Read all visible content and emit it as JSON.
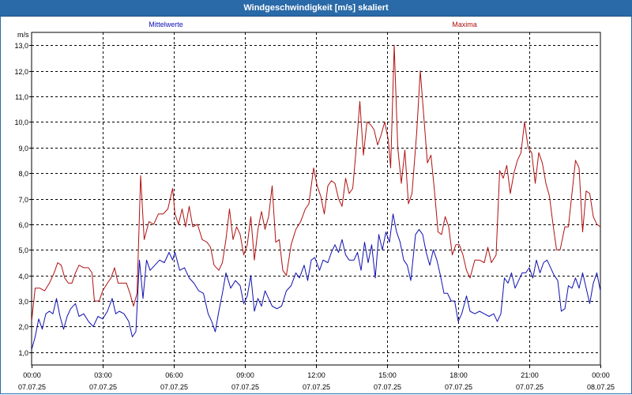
{
  "window": {
    "title": "Windgeschwindigkeit [m/s] skaliert"
  },
  "chart_data": {
    "type": "line",
    "title": "Windgeschwindigkeit [m/s] skaliert",
    "ylabel": "m/s",
    "xlabel": "",
    "ylim": [
      0.5,
      13.5
    ],
    "yticks": [
      1.0,
      2.0,
      3.0,
      4.0,
      5.0,
      6.0,
      7.0,
      8.0,
      9.0,
      10.0,
      11.0,
      12.0,
      13.0
    ],
    "ytick_labels": [
      "1,0",
      "2,0",
      "3,0",
      "4,0",
      "5,0",
      "6,0",
      "7,0",
      "8,0",
      "9,0",
      "10,0",
      "11,0",
      "12,0",
      "13,0"
    ],
    "xlim_hours": [
      0,
      24
    ],
    "xticks": [
      {
        "h": 0,
        "time": "00:00",
        "date": "07.07.25"
      },
      {
        "h": 3,
        "time": "03:00",
        "date": "07.07.25"
      },
      {
        "h": 6,
        "time": "06:00",
        "date": "07.07.25"
      },
      {
        "h": 9,
        "time": "09:00",
        "date": "07.07.25"
      },
      {
        "h": 12,
        "time": "12:00",
        "date": "07.07.25"
      },
      {
        "h": 15,
        "time": "15:00",
        "date": "07.07.25"
      },
      {
        "h": 18,
        "time": "18:00",
        "date": "07.07.25"
      },
      {
        "h": 21,
        "time": "21:00",
        "date": "07.07.25"
      },
      {
        "h": 24,
        "time": "00:00",
        "date": "08.07.25"
      }
    ],
    "grid": true,
    "legend": "top",
    "series": [
      {
        "name": "Mittelwerte",
        "color": "#1010b0",
        "points": [
          [
            0,
            1.1
          ],
          [
            0.15,
            1.6
          ],
          [
            0.3,
            2.3
          ],
          [
            0.45,
            1.9
          ],
          [
            0.6,
            2.5
          ],
          [
            0.75,
            2.6
          ],
          [
            0.9,
            2.5
          ],
          [
            1.05,
            3.1
          ],
          [
            1.2,
            2.4
          ],
          [
            1.35,
            1.9
          ],
          [
            1.5,
            2.4
          ],
          [
            1.65,
            2.7
          ],
          [
            1.85,
            2.9
          ],
          [
            2.0,
            2.4
          ],
          [
            2.2,
            2.5
          ],
          [
            2.4,
            2.2
          ],
          [
            2.6,
            2.0
          ],
          [
            2.8,
            2.4
          ],
          [
            3.0,
            2.3
          ],
          [
            3.2,
            2.6
          ],
          [
            3.4,
            3.1
          ],
          [
            3.55,
            2.5
          ],
          [
            3.7,
            2.6
          ],
          [
            3.9,
            2.5
          ],
          [
            4.1,
            2.2
          ],
          [
            4.25,
            1.6
          ],
          [
            4.4,
            1.8
          ],
          [
            4.55,
            4.6
          ],
          [
            4.7,
            3.1
          ],
          [
            4.85,
            4.6
          ],
          [
            5.0,
            4.2
          ],
          [
            5.2,
            4.4
          ],
          [
            5.4,
            4.6
          ],
          [
            5.6,
            4.5
          ],
          [
            5.8,
            4.9
          ],
          [
            5.95,
            4.6
          ],
          [
            6.05,
            4.9
          ],
          [
            6.25,
            4.2
          ],
          [
            6.45,
            4.3
          ],
          [
            6.65,
            3.9
          ],
          [
            6.85,
            3.7
          ],
          [
            7.05,
            3.4
          ],
          [
            7.25,
            3.3
          ],
          [
            7.45,
            2.5
          ],
          [
            7.6,
            2.2
          ],
          [
            7.75,
            1.8
          ],
          [
            7.9,
            2.6
          ],
          [
            8.05,
            3.3
          ],
          [
            8.2,
            4.1
          ],
          [
            8.4,
            3.5
          ],
          [
            8.6,
            3.8
          ],
          [
            8.8,
            3.6
          ],
          [
            8.95,
            2.9
          ],
          [
            9.1,
            3.2
          ],
          [
            9.25,
            4.0
          ],
          [
            9.4,
            2.6
          ],
          [
            9.55,
            3.1
          ],
          [
            9.7,
            2.8
          ],
          [
            9.85,
            3.4
          ],
          [
            10.0,
            3.1
          ],
          [
            10.15,
            2.8
          ],
          [
            10.35,
            2.7
          ],
          [
            10.55,
            2.8
          ],
          [
            10.75,
            3.4
          ],
          [
            10.95,
            3.6
          ],
          [
            11.15,
            4.1
          ],
          [
            11.3,
            3.9
          ],
          [
            11.5,
            4.4
          ],
          [
            11.65,
            3.8
          ],
          [
            11.8,
            4.6
          ],
          [
            11.95,
            4.7
          ],
          [
            12.15,
            4.2
          ],
          [
            12.3,
            4.6
          ],
          [
            12.5,
            4.5
          ],
          [
            12.65,
            4.9
          ],
          [
            12.8,
            5.2
          ],
          [
            12.95,
            4.9
          ],
          [
            13.1,
            5.4
          ],
          [
            13.25,
            4.8
          ],
          [
            13.4,
            4.6
          ],
          [
            13.6,
            4.6
          ],
          [
            13.75,
            4.9
          ],
          [
            13.9,
            4.2
          ],
          [
            14.05,
            5.3
          ],
          [
            14.2,
            4.5
          ],
          [
            14.35,
            5.2
          ],
          [
            14.5,
            3.9
          ],
          [
            14.65,
            5.6
          ],
          [
            14.8,
            5.0
          ],
          [
            14.95,
            5.7
          ],
          [
            15.1,
            5.3
          ],
          [
            15.25,
            6.4
          ],
          [
            15.4,
            5.7
          ],
          [
            15.55,
            5.3
          ],
          [
            15.7,
            4.6
          ],
          [
            15.85,
            4.4
          ],
          [
            16.0,
            3.8
          ],
          [
            16.2,
            5.6
          ],
          [
            16.35,
            5.8
          ],
          [
            16.5,
            5.6
          ],
          [
            16.65,
            4.9
          ],
          [
            16.8,
            4.4
          ],
          [
            16.95,
            5.0
          ],
          [
            17.1,
            4.6
          ],
          [
            17.25,
            4.0
          ],
          [
            17.4,
            3.3
          ],
          [
            17.55,
            3.3
          ],
          [
            17.7,
            3.0
          ],
          [
            17.85,
            3.0
          ],
          [
            18.0,
            2.2
          ],
          [
            18.15,
            2.5
          ],
          [
            18.35,
            3.2
          ],
          [
            18.5,
            2.6
          ],
          [
            18.7,
            2.5
          ],
          [
            18.9,
            2.6
          ],
          [
            19.1,
            2.5
          ],
          [
            19.3,
            2.4
          ],
          [
            19.5,
            2.5
          ],
          [
            19.65,
            2.2
          ],
          [
            19.8,
            2.5
          ],
          [
            19.95,
            3.9
          ],
          [
            20.1,
            3.7
          ],
          [
            20.25,
            4.1
          ],
          [
            20.4,
            3.5
          ],
          [
            20.55,
            3.8
          ],
          [
            20.7,
            4.1
          ],
          [
            20.85,
            4.1
          ],
          [
            21.0,
            4.3
          ],
          [
            21.15,
            3.9
          ],
          [
            21.3,
            4.6
          ],
          [
            21.45,
            4.1
          ],
          [
            21.6,
            4.5
          ],
          [
            21.75,
            4.6
          ],
          [
            21.9,
            4.3
          ],
          [
            22.05,
            4.0
          ],
          [
            22.2,
            3.8
          ],
          [
            22.35,
            2.6
          ],
          [
            22.5,
            2.7
          ],
          [
            22.65,
            3.6
          ],
          [
            22.8,
            3.5
          ],
          [
            22.95,
            3.9
          ],
          [
            23.1,
            3.5
          ],
          [
            23.25,
            4.1
          ],
          [
            23.4,
            3.5
          ],
          [
            23.55,
            2.9
          ],
          [
            23.7,
            3.7
          ],
          [
            23.85,
            4.1
          ],
          [
            24.0,
            3.4
          ],
          [
            24.15,
            3.6
          ],
          [
            24.3,
            3.4
          ]
        ]
      },
      {
        "name": "Maxima",
        "color": "#b01010",
        "points": [
          [
            0,
            2.2
          ],
          [
            0.15,
            3.5
          ],
          [
            0.35,
            3.5
          ],
          [
            0.55,
            3.4
          ],
          [
            0.75,
            3.7
          ],
          [
            0.95,
            4.1
          ],
          [
            1.1,
            4.5
          ],
          [
            1.25,
            4.4
          ],
          [
            1.4,
            3.9
          ],
          [
            1.55,
            3.7
          ],
          [
            1.7,
            3.7
          ],
          [
            1.85,
            4.1
          ],
          [
            2.0,
            4.4
          ],
          [
            2.2,
            4.3
          ],
          [
            2.4,
            4.3
          ],
          [
            2.55,
            4.1
          ],
          [
            2.65,
            3.0
          ],
          [
            2.85,
            3.0
          ],
          [
            3.0,
            3.4
          ],
          [
            3.2,
            3.7
          ],
          [
            3.35,
            3.9
          ],
          [
            3.5,
            4.3
          ],
          [
            3.65,
            3.7
          ],
          [
            3.8,
            3.7
          ],
          [
            4.0,
            3.7
          ],
          [
            4.15,
            3.3
          ],
          [
            4.3,
            2.8
          ],
          [
            4.45,
            3.3
          ],
          [
            4.6,
            7.9
          ],
          [
            4.75,
            5.4
          ],
          [
            4.95,
            6.1
          ],
          [
            5.15,
            6.0
          ],
          [
            5.35,
            6.4
          ],
          [
            5.55,
            6.4
          ],
          [
            5.75,
            6.6
          ],
          [
            5.95,
            7.4
          ],
          [
            6.05,
            6.4
          ],
          [
            6.2,
            6.0
          ],
          [
            6.35,
            6.6
          ],
          [
            6.5,
            5.9
          ],
          [
            6.65,
            6.7
          ],
          [
            6.8,
            5.9
          ],
          [
            7.0,
            6.0
          ],
          [
            7.2,
            5.4
          ],
          [
            7.4,
            5.3
          ],
          [
            7.55,
            5.1
          ],
          [
            7.7,
            4.4
          ],
          [
            7.9,
            4.2
          ],
          [
            8.05,
            4.5
          ],
          [
            8.2,
            5.4
          ],
          [
            8.35,
            6.6
          ],
          [
            8.5,
            5.4
          ],
          [
            8.65,
            5.9
          ],
          [
            8.8,
            5.6
          ],
          [
            8.95,
            4.8
          ],
          [
            9.1,
            5.2
          ],
          [
            9.25,
            6.3
          ],
          [
            9.4,
            4.6
          ],
          [
            9.55,
            5.8
          ],
          [
            9.7,
            6.5
          ],
          [
            9.85,
            5.8
          ],
          [
            10.0,
            6.3
          ],
          [
            10.15,
            7.5
          ],
          [
            10.3,
            5.3
          ],
          [
            10.45,
            5.4
          ],
          [
            10.6,
            4.2
          ],
          [
            10.75,
            4.0
          ],
          [
            10.95,
            5.2
          ],
          [
            11.15,
            5.8
          ],
          [
            11.35,
            6.1
          ],
          [
            11.55,
            6.6
          ],
          [
            11.7,
            6.8
          ],
          [
            11.9,
            8.2
          ],
          [
            12.05,
            7.5
          ],
          [
            12.2,
            7.1
          ],
          [
            12.35,
            6.4
          ],
          [
            12.5,
            7.5
          ],
          [
            12.65,
            7.7
          ],
          [
            12.8,
            7.6
          ],
          [
            12.95,
            7.0
          ],
          [
            13.1,
            6.7
          ],
          [
            13.25,
            7.8
          ],
          [
            13.4,
            7.2
          ],
          [
            13.55,
            7.4
          ],
          [
            13.7,
            9.0
          ],
          [
            13.85,
            10.8
          ],
          [
            14.0,
            8.7
          ],
          [
            14.15,
            10.0
          ],
          [
            14.3,
            9.9
          ],
          [
            14.45,
            9.7
          ],
          [
            14.6,
            9.1
          ],
          [
            14.75,
            9.5
          ],
          [
            14.9,
            10.0
          ],
          [
            15.05,
            9.3
          ],
          [
            15.15,
            8.2
          ],
          [
            15.3,
            13.0
          ],
          [
            15.45,
            9.0
          ],
          [
            15.6,
            7.6
          ],
          [
            15.75,
            8.9
          ],
          [
            15.9,
            6.8
          ],
          [
            16.05,
            7.2
          ],
          [
            16.25,
            9.6
          ],
          [
            16.4,
            12.0
          ],
          [
            16.55,
            10.2
          ],
          [
            16.7,
            8.4
          ],
          [
            16.85,
            8.7
          ],
          [
            17.0,
            7.3
          ],
          [
            17.15,
            5.7
          ],
          [
            17.3,
            5.6
          ],
          [
            17.45,
            6.3
          ],
          [
            17.6,
            5.9
          ],
          [
            17.75,
            4.8
          ],
          [
            17.9,
            5.2
          ],
          [
            18.05,
            5.2
          ],
          [
            18.2,
            4.8
          ],
          [
            18.35,
            4.2
          ],
          [
            18.5,
            3.9
          ],
          [
            18.7,
            4.6
          ],
          [
            18.9,
            4.6
          ],
          [
            19.1,
            4.5
          ],
          [
            19.25,
            5.1
          ],
          [
            19.4,
            4.5
          ],
          [
            19.6,
            4.8
          ],
          [
            19.75,
            8.1
          ],
          [
            19.9,
            7.8
          ],
          [
            20.05,
            8.3
          ],
          [
            20.2,
            7.2
          ],
          [
            20.35,
            8.0
          ],
          [
            20.5,
            8.5
          ],
          [
            20.65,
            8.8
          ],
          [
            20.8,
            10.0
          ],
          [
            20.95,
            9.0
          ],
          [
            21.1,
            8.8
          ],
          [
            21.25,
            7.6
          ],
          [
            21.4,
            8.8
          ],
          [
            21.55,
            8.4
          ],
          [
            21.7,
            7.6
          ],
          [
            21.85,
            7.1
          ],
          [
            22.0,
            6.0
          ],
          [
            22.15,
            5.0
          ],
          [
            22.3,
            5.0
          ],
          [
            22.5,
            5.9
          ],
          [
            22.65,
            5.9
          ],
          [
            22.8,
            7.2
          ],
          [
            22.95,
            8.5
          ],
          [
            23.1,
            8.2
          ],
          [
            23.25,
            5.7
          ],
          [
            23.4,
            7.3
          ],
          [
            23.55,
            7.2
          ],
          [
            23.7,
            6.3
          ],
          [
            23.85,
            6.0
          ],
          [
            24.0,
            5.9
          ],
          [
            24.15,
            6.0
          ],
          [
            24.3,
            5.9
          ]
        ]
      }
    ]
  }
}
